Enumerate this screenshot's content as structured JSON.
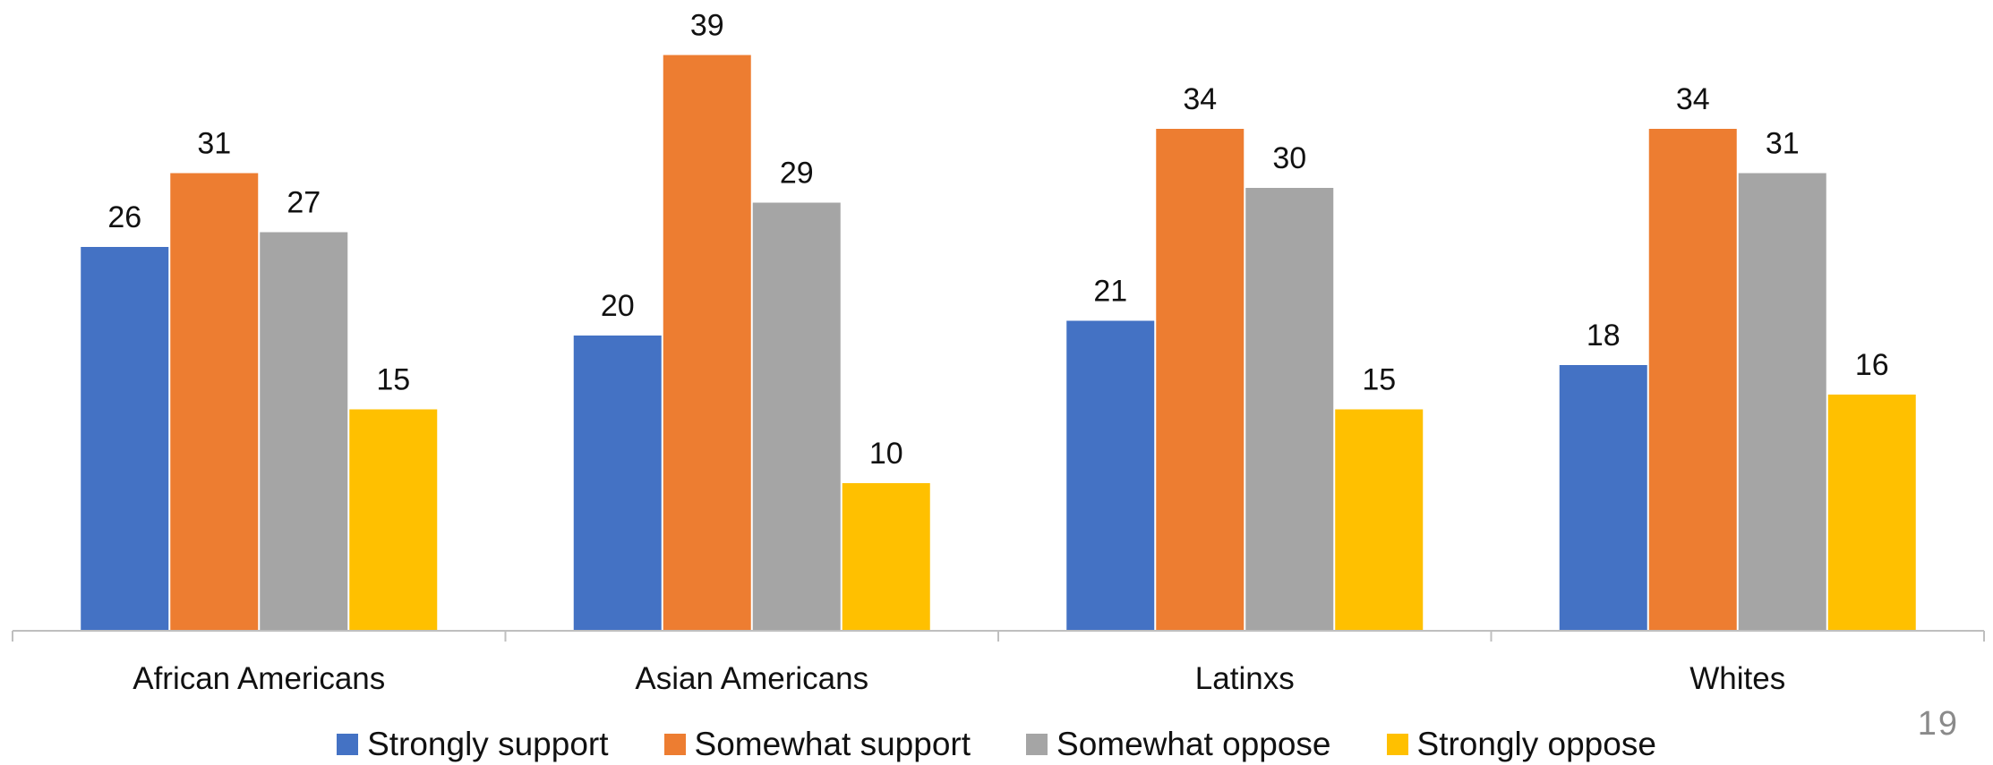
{
  "chart_data": {
    "type": "bar",
    "categories": [
      "African Americans",
      "Asian Americans",
      "Latinxs",
      "Whites"
    ],
    "series": [
      {
        "name": "Strongly support",
        "color": "#4472C4",
        "values": [
          26,
          20,
          21,
          18
        ]
      },
      {
        "name": "Somewhat support",
        "color": "#ED7D31",
        "values": [
          31,
          39,
          34,
          34
        ]
      },
      {
        "name": "Somewhat oppose",
        "color": "#A5A5A5",
        "values": [
          27,
          29,
          30,
          31
        ]
      },
      {
        "name": "Strongly oppose",
        "color": "#FFC000",
        "values": [
          15,
          10,
          15,
          16
        ]
      }
    ],
    "ylim": [
      0,
      40
    ],
    "grid": false,
    "legend_position": "bottom",
    "data_labels": true
  },
  "page_number": "19"
}
